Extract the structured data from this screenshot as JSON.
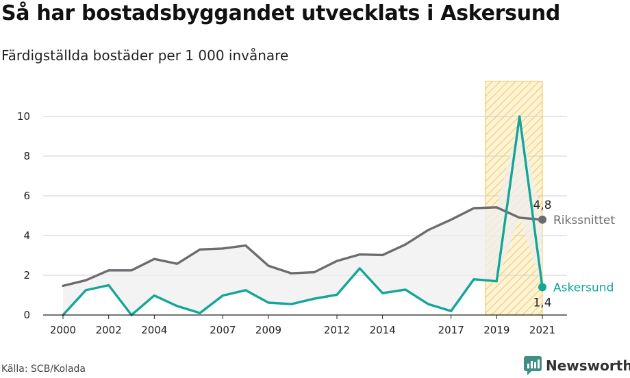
{
  "title": "Så har bostadsbyggandet utvecklats i Askersund",
  "subtitle": "Färdigställda bostäder per 1 000 invånare",
  "source": "Källa: SCB/Kolada",
  "brand": "Newsworthy",
  "chart_data": {
    "type": "line",
    "x": [
      2000,
      2001,
      2002,
      2003,
      2004,
      2005,
      2006,
      2007,
      2008,
      2009,
      2010,
      2011,
      2012,
      2013,
      2014,
      2015,
      2016,
      2017,
      2018,
      2019,
      2020,
      2021
    ],
    "series": [
      {
        "name": "Rikssnittet",
        "color": "#6e6a70",
        "values": [
          1.47,
          1.75,
          2.25,
          2.25,
          2.82,
          2.58,
          3.3,
          3.35,
          3.5,
          2.48,
          2.1,
          2.15,
          2.72,
          3.05,
          3.02,
          3.55,
          4.28,
          4.8,
          5.38,
          5.42,
          4.9,
          4.8
        ]
      },
      {
        "name": "Askersund",
        "color": "#13a596",
        "values": [
          0.0,
          1.25,
          1.5,
          0.0,
          0.98,
          0.45,
          0.1,
          0.98,
          1.25,
          0.62,
          0.55,
          0.82,
          1.02,
          2.35,
          1.1,
          1.28,
          0.55,
          0.2,
          1.8,
          1.7,
          10.0,
          1.4
        ]
      }
    ],
    "xticks": [
      2000,
      2002,
      2004,
      2007,
      2009,
      2012,
      2014,
      2017,
      2019,
      2021
    ],
    "yticks": [
      0,
      2,
      4,
      6,
      8,
      10
    ],
    "ylim": [
      0,
      11.5
    ],
    "highlight": {
      "from": 2018.5,
      "to": 2021.0,
      "color": "#f5c842"
    },
    "end_labels": [
      {
        "series": "Rikssnittet",
        "value": "4,8",
        "name": "Rikssnittet"
      },
      {
        "series": "Askersund",
        "value": "1,4",
        "name": "Askersund"
      }
    ],
    "grid": true
  }
}
